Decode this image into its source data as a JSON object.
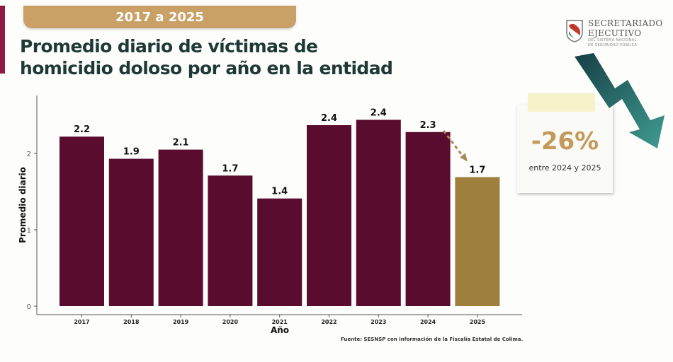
{
  "header": {
    "period_label": "2017 a 2025",
    "title_line1": "Promedio diario de víctimas de",
    "title_line2": "homicidio doloso por año en la entidad"
  },
  "logo": {
    "line1": "SECRETARIADO",
    "line2": "EJECUTIVO",
    "line3": "DEL SISTEMA NACIONAL",
    "line4": "DE SEGURIDAD PÚBLICA",
    "icon": "shield-icon"
  },
  "callout": {
    "value": "-26%",
    "caption": "entre 2024 y 2025",
    "icon": "trend-down-arrow-icon"
  },
  "source": "Fuente: SESNSP con información de la Fiscalía Estatal de Colima.",
  "colors": {
    "bar": "#5a0c2e",
    "highlight_bar": "#9e7f3c",
    "accent_gold": "#c9a065",
    "title": "#1f3a36",
    "arrow": "#2a6a66"
  },
  "chart_data": {
    "type": "bar",
    "title": "Promedio diario de víctimas de homicidio doloso por año en la entidad",
    "xlabel": "Año",
    "ylabel": "Promedio diario",
    "categories": [
      "2017",
      "2018",
      "2019",
      "2020",
      "2021",
      "2022",
      "2023",
      "2024",
      "2025"
    ],
    "values": [
      2.22,
      1.93,
      2.05,
      1.71,
      1.41,
      2.37,
      2.44,
      2.28,
      1.69
    ],
    "data_labels": [
      "2.2",
      "1.9",
      "2.1",
      "1.7",
      "1.4",
      "2.4",
      "2.4",
      "2.3",
      "1.7"
    ],
    "highlight_category": "2025",
    "yticks": [
      0,
      1,
      2
    ],
    "ylim": [
      0,
      2.7
    ],
    "grid": false,
    "annotation": "dashed arrow from 2024 to 2025"
  }
}
